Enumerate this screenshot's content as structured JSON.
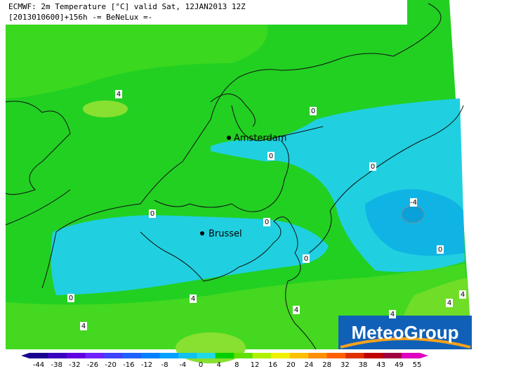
{
  "header": {
    "line1": "ECMWF: 2m Temperature [°C] valid Sat, 12JAN2013 12Z",
    "line2": "[2013010600]+156h -= BeNeLux =-"
  },
  "cities": [
    "Amsterdam",
    "Brussel"
  ],
  "contour_labels": [
    "4",
    "0",
    "0",
    "0",
    "-4",
    "0",
    "0",
    "0",
    "0",
    "0",
    "4",
    "4",
    "4",
    "4",
    "4",
    "4"
  ],
  "logo": "MeteoGroup",
  "colorbar": {
    "ticks": [
      -44,
      -38,
      -32,
      -26,
      -20,
      -16,
      -12,
      -8,
      -4,
      0,
      4,
      8,
      12,
      16,
      20,
      24,
      28,
      32,
      38,
      43,
      49,
      55
    ],
    "colors": [
      "#1a0090",
      "#3a00c0",
      "#6000e0",
      "#7020ff",
      "#4040ff",
      "#2060ff",
      "#0080ff",
      "#00a0ff",
      "#10c0f0",
      "#20d8e8",
      "#00d000",
      "#60e000",
      "#b0f000",
      "#f0f000",
      "#ffc000",
      "#ff9000",
      "#ff6000",
      "#e03000",
      "#c00000",
      "#a00040",
      "#e000c0"
    ]
  }
}
